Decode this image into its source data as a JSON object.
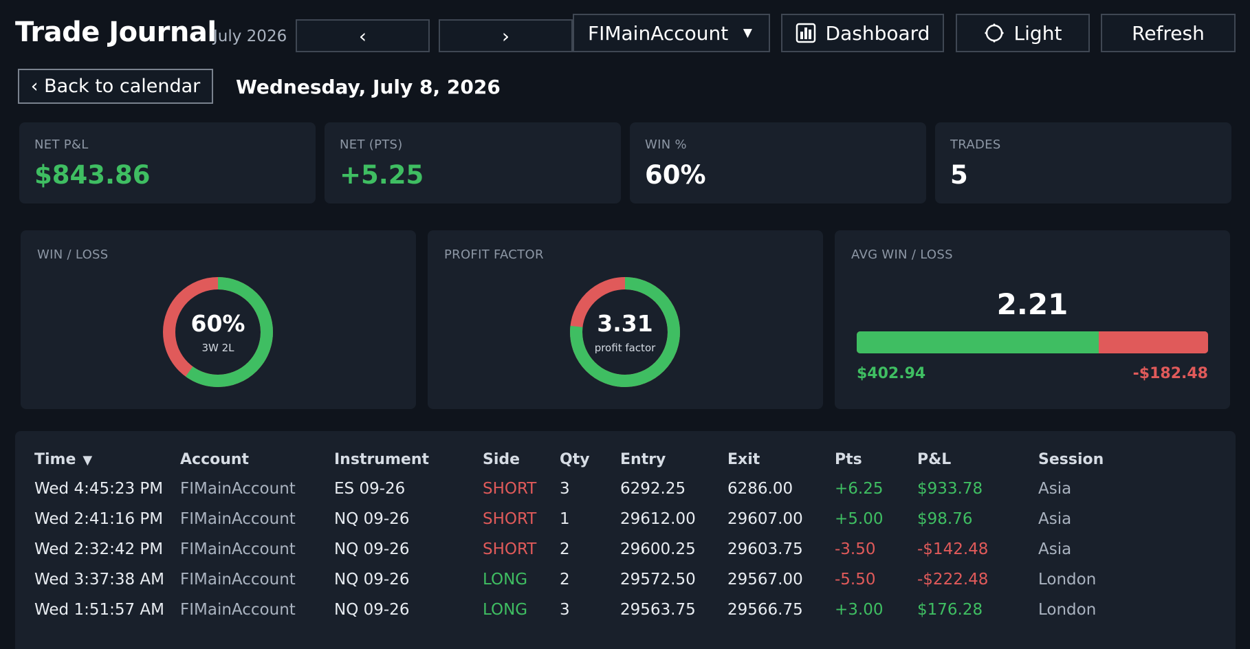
{
  "header": {
    "app_title": "Trade Journal",
    "month_label": "July 2026",
    "prev_label": "‹",
    "next_label": "›",
    "account_selected": "FIMainAccount",
    "dashboard_label": "Dashboard",
    "theme_label": "Light",
    "refresh_label": "Refresh"
  },
  "subheader": {
    "back_label": "‹ Back to calendar",
    "date": "Wednesday, July 8, 2026"
  },
  "stats": {
    "net_pnl": {
      "label": "NET P&L",
      "value": "$843.86"
    },
    "net_pts": {
      "label": "NET (PTS)",
      "value": "+5.25"
    },
    "win_pct": {
      "label": "WIN %",
      "value": "60%"
    },
    "trades": {
      "label": "TRADES",
      "value": "5"
    }
  },
  "charts": {
    "win_loss": {
      "label": "WIN / LOSS",
      "center": "60%",
      "sub": "3W 2L",
      "fraction": 0.6
    },
    "profit_factor": {
      "label": "PROFIT FACTOR",
      "center": "3.31",
      "sub": "profit factor",
      "fraction": 0.768
    },
    "avg_win_loss": {
      "label": "AVG WIN / LOSS",
      "ratio": "2.21",
      "avg_win": "$402.94",
      "avg_loss": "-$182.48",
      "win_fraction": 0.688
    }
  },
  "colors": {
    "win": "#3fbe62",
    "loss": "#e05a5a",
    "background": "#0f141c",
    "card": "#19202b"
  },
  "table": {
    "columns": [
      "Time",
      "Account",
      "Instrument",
      "Side",
      "Qty",
      "Entry",
      "Exit",
      "Pts",
      "P&L",
      "Session"
    ],
    "sort_icon": "▼",
    "rows": [
      {
        "time": "Wed 4:45:23 PM",
        "account": "FIMainAccount",
        "instrument": "ES 09-26",
        "side": "SHORT",
        "qty": "3",
        "entry": "6292.25",
        "exit": "6286.00",
        "pts": "+6.25",
        "pnl": "$933.78",
        "session": "Asia",
        "result": "win"
      },
      {
        "time": "Wed 2:41:16 PM",
        "account": "FIMainAccount",
        "instrument": "NQ 09-26",
        "side": "SHORT",
        "qty": "1",
        "entry": "29612.00",
        "exit": "29607.00",
        "pts": "+5.00",
        "pnl": "$98.76",
        "session": "Asia",
        "result": "win"
      },
      {
        "time": "Wed 2:32:42 PM",
        "account": "FIMainAccount",
        "instrument": "NQ 09-26",
        "side": "SHORT",
        "qty": "2",
        "entry": "29600.25",
        "exit": "29603.75",
        "pts": "-3.50",
        "pnl": "-$142.48",
        "session": "Asia",
        "result": "loss"
      },
      {
        "time": "Wed 3:37:38 AM",
        "account": "FIMainAccount",
        "instrument": "NQ 09-26",
        "side": "LONG",
        "qty": "2",
        "entry": "29572.50",
        "exit": "29567.00",
        "pts": "-5.50",
        "pnl": "-$222.48",
        "session": "London",
        "result": "loss"
      },
      {
        "time": "Wed 1:51:57 AM",
        "account": "FIMainAccount",
        "instrument": "NQ 09-26",
        "side": "LONG",
        "qty": "3",
        "entry": "29563.75",
        "exit": "29566.75",
        "pts": "+3.00",
        "pnl": "$176.28",
        "session": "London",
        "result": "win"
      }
    ]
  }
}
